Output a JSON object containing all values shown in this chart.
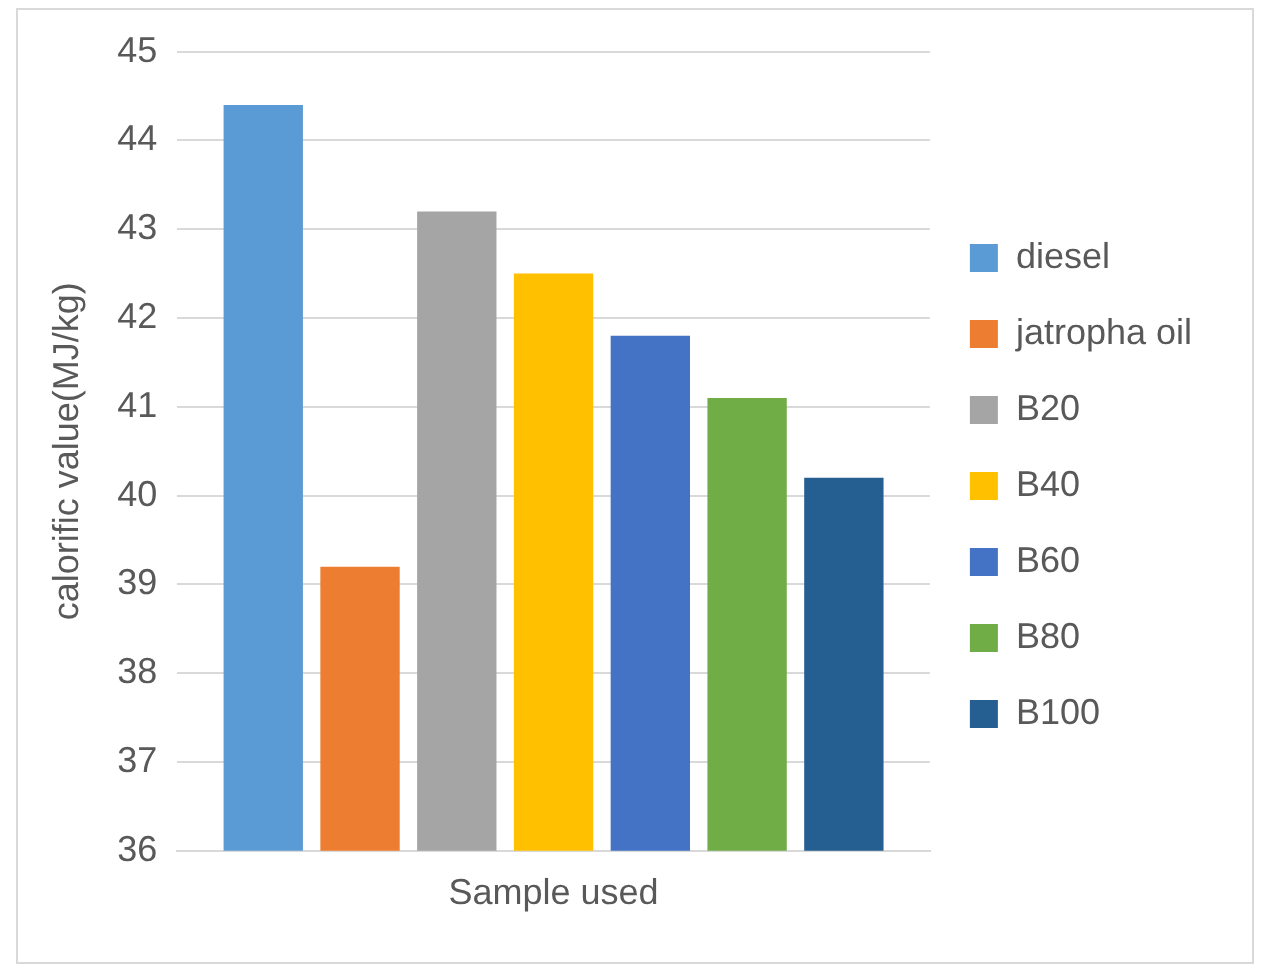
{
  "chart_data": {
    "type": "bar",
    "ylabel": "calorific value(MJ/kg)",
    "categories": [
      "Sample used"
    ],
    "series": [
      {
        "name": "diesel",
        "color": "#5b9bd5",
        "values": [
          44.4
        ]
      },
      {
        "name": "jatropha oil",
        "color": "#ed7d31",
        "values": [
          39.2
        ]
      },
      {
        "name": "B20",
        "color": "#a5a5a5",
        "values": [
          43.2
        ]
      },
      {
        "name": "B40",
        "color": "#ffc000",
        "values": [
          42.5
        ]
      },
      {
        "name": "B60",
        "color": "#4472c4",
        "values": [
          41.8
        ]
      },
      {
        "name": "B80",
        "color": "#70ad47",
        "values": [
          41.1
        ]
      },
      {
        "name": "B100",
        "color": "#255e91",
        "values": [
          40.2
        ]
      }
    ],
    "ylim": [
      36,
      45
    ],
    "yticks": [
      36,
      37,
      38,
      39,
      40,
      41,
      42,
      43,
      44,
      45
    ],
    "grid": "y",
    "legend": "right"
  }
}
